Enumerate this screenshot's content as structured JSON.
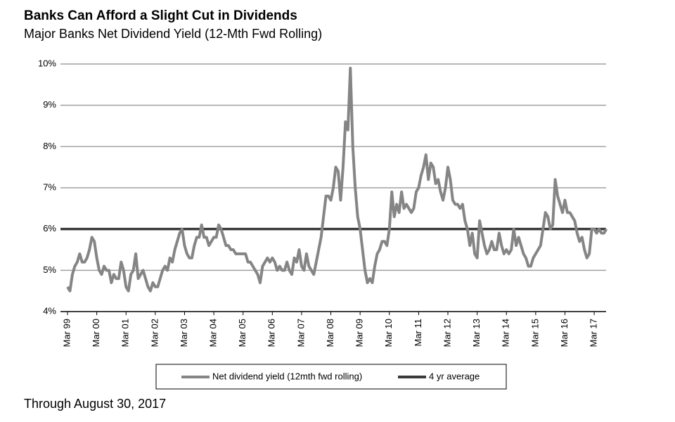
{
  "chart_data": {
    "type": "line",
    "title": "Banks Can Afford a Slight Cut in Dividends",
    "subtitle": "Major Banks Net Dividend Yield (12-Mth Fwd Rolling)",
    "note": "Through August 30, 2017",
    "categories": [
      "Mar 99",
      null,
      null,
      null,
      null,
      null,
      null,
      null,
      null,
      null,
      null,
      null,
      "Mar 00",
      null,
      null,
      null,
      null,
      null,
      null,
      null,
      null,
      null,
      null,
      null,
      "Mar 01",
      null,
      null,
      null,
      null,
      null,
      null,
      null,
      null,
      null,
      null,
      null,
      "Mar 02",
      null,
      null,
      null,
      null,
      null,
      null,
      null,
      null,
      null,
      null,
      null,
      "Mar 03",
      null,
      null,
      null,
      null,
      null,
      null,
      null,
      null,
      null,
      null,
      null,
      "Mar 04",
      null,
      null,
      null,
      null,
      null,
      null,
      null,
      null,
      null,
      null,
      null,
      "Mar 05",
      null,
      null,
      null,
      null,
      null,
      null,
      null,
      null,
      null,
      null,
      null,
      "Mar 06",
      null,
      null,
      null,
      null,
      null,
      null,
      null,
      null,
      null,
      null,
      null,
      "Mar 07",
      null,
      null,
      null,
      null,
      null,
      null,
      null,
      null,
      null,
      null,
      null,
      "Mar 08",
      null,
      null,
      null,
      null,
      null,
      null,
      null,
      null,
      null,
      null,
      null,
      "Mar 09",
      null,
      null,
      null,
      null,
      null,
      null,
      null,
      null,
      null,
      null,
      null,
      "Mar 10",
      null,
      null,
      null,
      null,
      null,
      null,
      null,
      null,
      null,
      null,
      null,
      "Mar 11",
      null,
      null,
      null,
      null,
      null,
      null,
      null,
      null,
      null,
      null,
      null,
      "Mar 12",
      null,
      null,
      null,
      null,
      null,
      null,
      null,
      null,
      null,
      null,
      null,
      "Mar 13",
      null,
      null,
      null,
      null,
      null,
      null,
      null,
      null,
      null,
      null,
      null,
      "Mar 14",
      null,
      null,
      null,
      null,
      null,
      null,
      null,
      null,
      null,
      null,
      null,
      "Mar 15",
      null,
      null,
      null,
      null,
      null,
      null,
      null,
      null,
      null,
      null,
      null,
      "Mar 16",
      null,
      null,
      null,
      null,
      null,
      null,
      null,
      null,
      null,
      null,
      null,
      "Mar 17",
      null,
      null,
      null,
      null,
      null
    ],
    "series": [
      {
        "name": "Net dividend yield (12mth fwd rolling)",
        "color": "#858585",
        "values": [
          4.6,
          4.5,
          4.9,
          5.1,
          5.2,
          5.4,
          5.2,
          5.2,
          5.3,
          5.5,
          5.8,
          5.7,
          5.3,
          5.0,
          4.9,
          5.1,
          5.0,
          5.0,
          4.7,
          4.9,
          4.8,
          4.8,
          5.2,
          5.0,
          4.6,
          4.5,
          4.9,
          5.0,
          5.4,
          4.8,
          4.9,
          5.0,
          4.8,
          4.6,
          4.5,
          4.7,
          4.6,
          4.6,
          4.8,
          5.0,
          5.1,
          5.0,
          5.3,
          5.2,
          5.5,
          5.7,
          5.9,
          6.0,
          5.6,
          5.4,
          5.3,
          5.3,
          5.6,
          5.8,
          5.8,
          6.1,
          5.8,
          5.8,
          5.6,
          5.7,
          5.8,
          5.8,
          6.1,
          6.0,
          5.8,
          5.6,
          5.6,
          5.5,
          5.5,
          5.4,
          5.4,
          5.4,
          5.4,
          5.4,
          5.2,
          5.2,
          5.1,
          5.0,
          4.9,
          4.7,
          5.1,
          5.2,
          5.3,
          5.2,
          5.3,
          5.2,
          5.0,
          5.1,
          5.0,
          5.0,
          5.2,
          5.0,
          4.9,
          5.3,
          5.2,
          5.5,
          5.1,
          5.0,
          5.4,
          5.1,
          5.0,
          4.9,
          5.2,
          5.5,
          5.8,
          6.3,
          6.8,
          6.8,
          6.7,
          7.0,
          7.5,
          7.4,
          6.7,
          7.5,
          8.6,
          8.4,
          9.9,
          8.0,
          7.0,
          6.3,
          6.0,
          5.5,
          5.0,
          4.7,
          4.8,
          4.7,
          5.1,
          5.4,
          5.5,
          5.7,
          5.7,
          5.6,
          6.0,
          6.9,
          6.3,
          6.6,
          6.4,
          6.9,
          6.5,
          6.6,
          6.5,
          6.4,
          6.5,
          6.9,
          7.0,
          7.3,
          7.5,
          7.8,
          7.2,
          7.6,
          7.5,
          7.1,
          7.2,
          6.9,
          6.7,
          7.0,
          7.5,
          7.2,
          6.7,
          6.6,
          6.6,
          6.5,
          6.6,
          6.2,
          6.0,
          5.6,
          5.9,
          5.4,
          5.3,
          6.2,
          5.9,
          5.6,
          5.4,
          5.5,
          5.7,
          5.5,
          5.5,
          5.9,
          5.6,
          5.4,
          5.5,
          5.4,
          5.5,
          6.0,
          5.6,
          5.8,
          5.6,
          5.4,
          5.3,
          5.1,
          5.1,
          5.3,
          5.4,
          5.5,
          5.6,
          6.0,
          6.4,
          6.3,
          6.0,
          6.1,
          7.2,
          6.8,
          6.6,
          6.4,
          6.7,
          6.4,
          6.4,
          6.3,
          6.2,
          5.9,
          5.7,
          5.8,
          5.5,
          5.3,
          5.4,
          6.0,
          6.0,
          5.9,
          6.0,
          5.9,
          5.9,
          6.0
        ]
      }
    ],
    "reference_lines": [
      {
        "name": "4 yr average",
        "color": "#3a3a3a",
        "value": 6
      }
    ],
    "ylim": [
      4,
      10
    ],
    "yticks": [
      {
        "value": 4,
        "label": "4%"
      },
      {
        "value": 5,
        "label": "5%"
      },
      {
        "value": 6,
        "label": "6%"
      },
      {
        "value": 7,
        "label": "7%"
      },
      {
        "value": 8,
        "label": "8%"
      },
      {
        "value": 9,
        "label": "9%"
      },
      {
        "value": 10,
        "label": "10%"
      }
    ],
    "grid": true,
    "legend": "bottom"
  }
}
